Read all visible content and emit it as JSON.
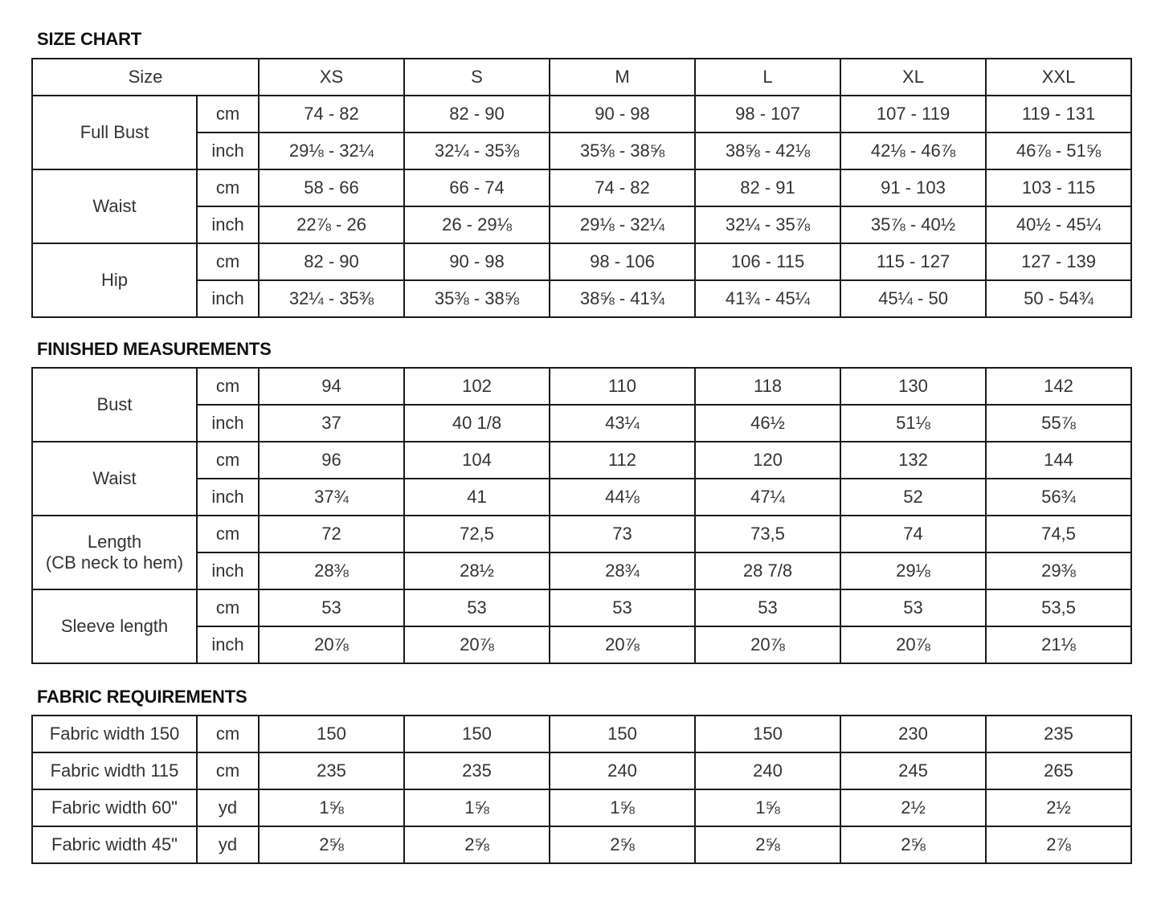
{
  "size_chart": {
    "title": "SIZE CHART",
    "header_label": "Size",
    "sizes": [
      "XS",
      "S",
      "M",
      "L",
      "XL",
      "XXL"
    ],
    "groups": [
      {
        "label": "Full Bust",
        "rows": [
          {
            "unit": "cm",
            "values": [
              "74 - 82",
              "82 - 90",
              "90 - 98",
              "98 - 107",
              "107 - 119",
              "119 - 131"
            ]
          },
          {
            "unit": "inch",
            "values": [
              "29⅛ - 32¼",
              "32¼ - 35⅜",
              "35⅜ - 38⅝",
              "38⅝ - 42⅛",
              "42⅛ - 46⅞",
              "46⅞ - 51⅝"
            ]
          }
        ]
      },
      {
        "label": "Waist",
        "rows": [
          {
            "unit": "cm",
            "values": [
              "58 - 66",
              "66 - 74",
              "74 - 82",
              "82 - 91",
              "91 - 103",
              "103 - 115"
            ]
          },
          {
            "unit": "inch",
            "values": [
              "22⅞ - 26",
              "26 - 29⅛",
              "29⅛ - 32¼",
              "32¼ - 35⅞",
              "35⅞ - 40½",
              "40½ - 45¼"
            ]
          }
        ]
      },
      {
        "label": "Hip",
        "rows": [
          {
            "unit": "cm",
            "values": [
              "82 - 90",
              "90 - 98",
              "98 - 106",
              "106 - 115",
              "115 - 127",
              "127 - 139"
            ]
          },
          {
            "unit": "inch",
            "values": [
              "32¼ - 35⅜",
              "35⅜ - 38⅝",
              "38⅝ - 41¾",
              "41¾ - 45¼",
              "45¼ - 50",
              "50 - 54¾"
            ]
          }
        ]
      }
    ]
  },
  "finished_measurements": {
    "title": "FINISHED MEASUREMENTS",
    "groups": [
      {
        "label": "Bust",
        "rows": [
          {
            "unit": "cm",
            "values": [
              "94",
              "102",
              "110",
              "118",
              "130",
              "142"
            ]
          },
          {
            "unit": "inch",
            "values": [
              "37",
              "40 1/8",
              "43¼",
              "46½",
              "51⅛",
              "55⅞"
            ]
          }
        ]
      },
      {
        "label": "Waist",
        "rows": [
          {
            "unit": "cm",
            "values": [
              "96",
              "104",
              "112",
              "120",
              "132",
              "144"
            ]
          },
          {
            "unit": "inch",
            "values": [
              "37¾",
              "41",
              "44⅛",
              "47¼",
              "52",
              "56¾"
            ]
          }
        ]
      },
      {
        "label": "Length\n(CB neck to hem)",
        "rows": [
          {
            "unit": "cm",
            "values": [
              "72",
              "72,5",
              "73",
              "73,5",
              "74",
              "74,5"
            ]
          },
          {
            "unit": "inch",
            "values": [
              "28⅜",
              "28½",
              "28¾",
              "28 7/8",
              "29⅛",
              "29⅜"
            ]
          }
        ]
      },
      {
        "label": "Sleeve length",
        "rows": [
          {
            "unit": "cm",
            "values": [
              "53",
              "53",
              "53",
              "53",
              "53",
              "53,5"
            ]
          },
          {
            "unit": "inch",
            "values": [
              "20⅞",
              "20⅞",
              "20⅞",
              "20⅞",
              "20⅞",
              "21⅛"
            ]
          }
        ]
      }
    ]
  },
  "fabric_requirements": {
    "title": "FABRIC REQUIREMENTS",
    "groups": [
      {
        "label": "Fabric width 150",
        "rows": [
          {
            "unit": "cm",
            "values": [
              "150",
              "150",
              "150",
              "150",
              "230",
              "235"
            ]
          }
        ]
      },
      {
        "label": "Fabric width 115",
        "rows": [
          {
            "unit": "cm",
            "values": [
              "235",
              "235",
              "240",
              "240",
              "245",
              "265"
            ]
          }
        ]
      },
      {
        "label": "Fabric width 60\"",
        "rows": [
          {
            "unit": "yd",
            "values": [
              "1⅝",
              "1⅝",
              "1⅝",
              "1⅝",
              "2½",
              "2½"
            ]
          }
        ]
      },
      {
        "label": "Fabric width 45\"",
        "rows": [
          {
            "unit": "yd",
            "values": [
              "2⅝",
              "2⅝",
              "2⅝",
              "2⅝",
              "2⅝",
              "2⅞"
            ]
          }
        ]
      }
    ]
  }
}
